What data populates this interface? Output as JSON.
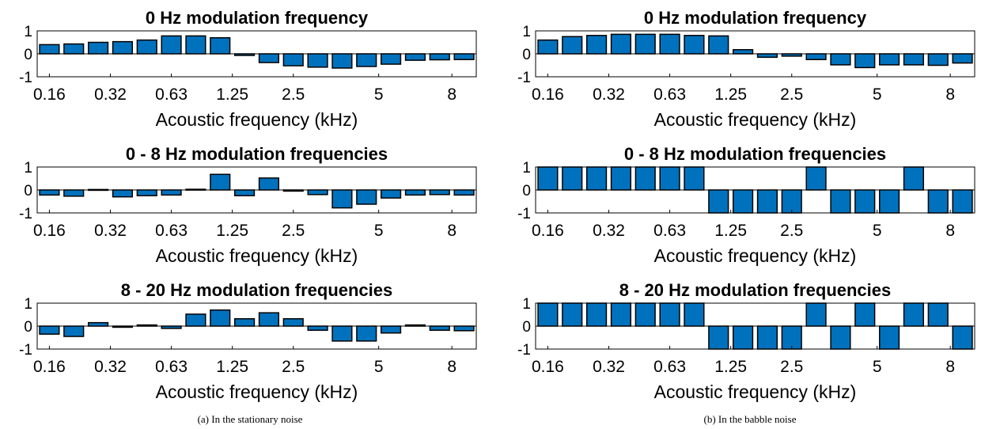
{
  "figure": {
    "captions": [
      "(a) In the stationary noise",
      "(b) In the babble noise"
    ]
  },
  "colors": {
    "bar_fill": "#0072BD",
    "bar_stroke": "#000000",
    "axis": "#000000"
  },
  "chart_data": [
    {
      "type": "bar",
      "panel": "a",
      "title": "0 Hz modulation frequency",
      "xlabel": "Acoustic frequency (kHz)",
      "ylabel": "",
      "ylim": [
        -1,
        1
      ],
      "yticks": [
        1,
        0,
        -1
      ],
      "yticklabels": [
        "1",
        "0",
        "-1"
      ],
      "xticklabels": [
        "0.16",
        "0.32",
        "0.63",
        "1.25",
        "2.5",
        "5",
        "8"
      ],
      "values": [
        0.4,
        0.43,
        0.5,
        0.53,
        0.6,
        0.78,
        0.78,
        0.7,
        -0.07,
        -0.38,
        -0.52,
        -0.58,
        -0.62,
        -0.55,
        -0.45,
        -0.28,
        -0.26,
        -0.25
      ]
    },
    {
      "type": "bar",
      "panel": "b",
      "title": "0 Hz modulation frequency",
      "xlabel": "Acoustic frequency (kHz)",
      "ylabel": "",
      "ylim": [
        -1,
        1
      ],
      "yticks": [
        1,
        0,
        -1
      ],
      "yticklabels": [
        "1",
        "0",
        "-1"
      ],
      "xticklabels": [
        "0.16",
        "0.32",
        "0.63",
        "1.25",
        "2.5",
        "5",
        "8"
      ],
      "values": [
        0.6,
        0.75,
        0.8,
        0.85,
        0.85,
        0.85,
        0.8,
        0.78,
        0.18,
        -0.15,
        -0.1,
        -0.25,
        -0.48,
        -0.6,
        -0.48,
        -0.48,
        -0.5,
        -0.4
      ]
    },
    {
      "type": "bar",
      "panel": "a",
      "title": "0 - 8 Hz modulation frequencies",
      "xlabel": "Acoustic frequency (kHz)",
      "ylabel": "",
      "ylim": [
        -1,
        1
      ],
      "yticks": [
        1,
        0,
        -1
      ],
      "yticklabels": [
        "1",
        "0",
        "-1"
      ],
      "xticklabels": [
        "0.16",
        "0.32",
        "0.63",
        "1.25",
        "2.5",
        "5",
        "8"
      ],
      "values": [
        -0.22,
        -0.27,
        0.02,
        -0.3,
        -0.25,
        -0.22,
        0.03,
        0.68,
        -0.25,
        0.52,
        -0.05,
        -0.2,
        -0.78,
        -0.62,
        -0.35,
        -0.22,
        -0.2,
        -0.22
      ]
    },
    {
      "type": "bar",
      "panel": "b",
      "title": "0 - 8 Hz modulation frequencies",
      "xlabel": "Acoustic frequency (kHz)",
      "ylabel": "",
      "ylim": [
        -1,
        1
      ],
      "yticks": [
        1,
        0,
        -1
      ],
      "yticklabels": [
        "1",
        "0",
        "-1"
      ],
      "xticklabels": [
        "0.16",
        "0.32",
        "0.63",
        "1.25",
        "2.5",
        "5",
        "8"
      ],
      "values": [
        1,
        1,
        1,
        1,
        1,
        1,
        1,
        -1,
        -1,
        -1,
        -1,
        1,
        -1,
        -1,
        -1,
        1,
        -1,
        -1
      ]
    },
    {
      "type": "bar",
      "panel": "a",
      "title": "8 - 20 Hz modulation frequencies",
      "xlabel": "Acoustic frequency (kHz)",
      "ylabel": "",
      "ylim": [
        -1,
        1
      ],
      "yticks": [
        1,
        0,
        -1
      ],
      "yticklabels": [
        "1",
        "0",
        "-1"
      ],
      "xticklabels": [
        "0.16",
        "0.32",
        "0.63",
        "1.25",
        "2.5",
        "5",
        "8"
      ],
      "values": [
        -0.35,
        -0.45,
        0.15,
        -0.05,
        0.05,
        -0.1,
        0.52,
        0.7,
        0.32,
        0.58,
        0.32,
        -0.18,
        -0.65,
        -0.65,
        -0.3,
        0.05,
        -0.18,
        -0.2
      ]
    },
    {
      "type": "bar",
      "panel": "b",
      "title": "8 - 20 Hz modulation frequencies",
      "xlabel": "Acoustic frequency (kHz)",
      "ylabel": "",
      "ylim": [
        -1,
        1
      ],
      "yticks": [
        1,
        0,
        -1
      ],
      "yticklabels": [
        "1",
        "0",
        "-1"
      ],
      "xticklabels": [
        "0.16",
        "0.32",
        "0.63",
        "1.25",
        "2.5",
        "5",
        "8"
      ],
      "values": [
        1,
        1,
        1,
        1,
        1,
        1,
        1,
        -1,
        -1,
        -1,
        -1,
        1,
        -1,
        1,
        -1,
        1,
        1,
        -1
      ]
    }
  ]
}
